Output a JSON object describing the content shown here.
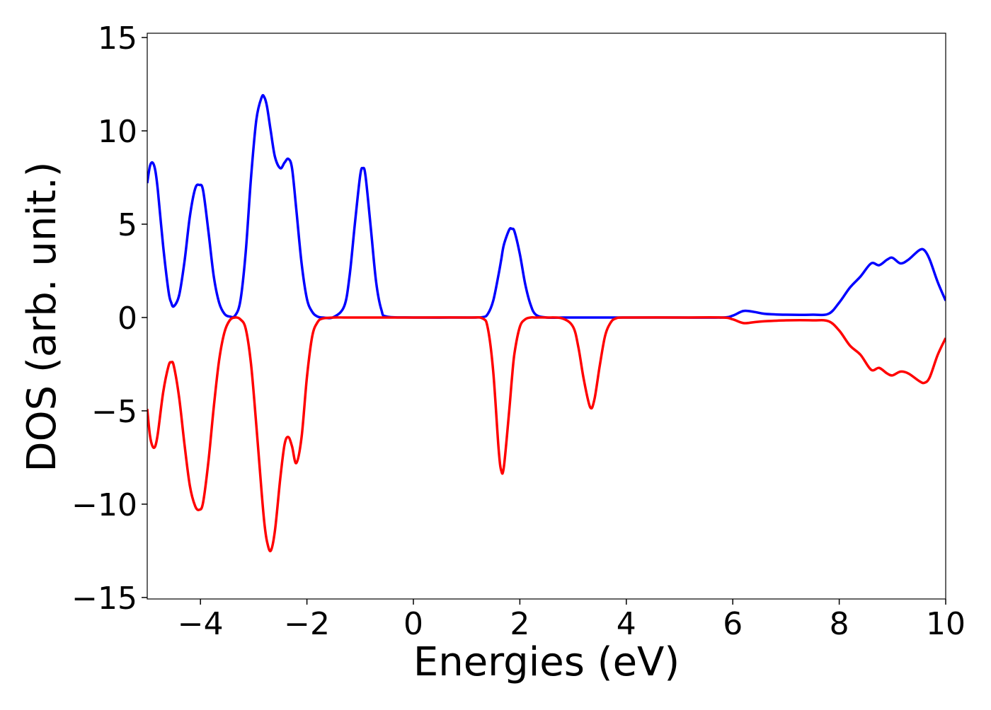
{
  "chart_data": {
    "type": "line",
    "x_label": "Energies (eV)",
    "y_label": "DOS (arb. unit.)",
    "x": [
      -5,
      -4.95,
      -4.9,
      -4.85,
      -4.8,
      -4.7,
      -4.6,
      -4.55,
      -4.5,
      -4.4,
      -4.3,
      -4.2,
      -4.1,
      -4.02,
      -3.95,
      -3.85,
      -3.75,
      -3.65,
      -3.55,
      -3.45,
      -3.35,
      -3.25,
      -3.15,
      -3.05,
      -2.95,
      -2.85,
      -2.8,
      -2.75,
      -2.68,
      -2.6,
      -2.5,
      -2.42,
      -2.35,
      -2.28,
      -2.2,
      -2.1,
      -2.0,
      -1.9,
      -1.8,
      -1.7,
      -1.5,
      -1.3,
      -1.2,
      -1.1,
      -1.0,
      -0.95,
      -0.9,
      -0.8,
      -0.7,
      -0.6,
      -0.5,
      0,
      1,
      1.3,
      1.4,
      1.5,
      1.6,
      1.65,
      1.7,
      1.8,
      1.85,
      1.9,
      2.0,
      2.1,
      2.2,
      2.3,
      2.5,
      2.8,
      3.0,
      3.1,
      3.2,
      3.32,
      3.4,
      3.5,
      3.6,
      3.7,
      3.8,
      4,
      5,
      5.8,
      6.0,
      6.2,
      6.4,
      6.6,
      7.0,
      7.5,
      7.8,
      8.0,
      8.2,
      8.4,
      8.6,
      8.75,
      8.9,
      9.0,
      9.15,
      9.3,
      9.5,
      9.6,
      9.7,
      9.85,
      10
    ],
    "series": [
      {
        "color": "#0000ff",
        "values": [
          7.2,
          8.1,
          8.3,
          7.9,
          6.8,
          3.8,
          1.4,
          0.8,
          0.6,
          1.2,
          3.0,
          5.4,
          6.9,
          7.1,
          6.8,
          4.6,
          2.2,
          0.8,
          0.2,
          0.05,
          0.1,
          0.9,
          3.5,
          7.5,
          10.6,
          11.8,
          11.8,
          11.3,
          10.0,
          8.6,
          8.0,
          8.3,
          8.5,
          8.0,
          5.8,
          2.9,
          1.0,
          0.3,
          0.05,
          0,
          0.02,
          0.6,
          2.2,
          5.0,
          7.6,
          8.0,
          7.6,
          4.8,
          1.9,
          0.4,
          0.05,
          0,
          0,
          0.02,
          0.2,
          0.9,
          2.3,
          3.1,
          3.9,
          4.7,
          4.75,
          4.6,
          3.4,
          1.8,
          0.7,
          0.15,
          0,
          0,
          0,
          0,
          0,
          0,
          0,
          0,
          0,
          0,
          0,
          0,
          0,
          0,
          0.1,
          0.35,
          0.3,
          0.2,
          0.15,
          0.15,
          0.2,
          0.8,
          1.6,
          2.2,
          2.9,
          2.8,
          3.1,
          3.2,
          2.9,
          3.1,
          3.6,
          3.6,
          3.1,
          1.9,
          0.9
        ]
      },
      {
        "color": "#ff0000",
        "values": [
          -4.9,
          -6.3,
          -6.9,
          -6.9,
          -6.2,
          -4.0,
          -2.6,
          -2.4,
          -2.6,
          -4.3,
          -6.8,
          -9.0,
          -10.1,
          -10.3,
          -9.9,
          -7.7,
          -4.8,
          -2.3,
          -0.8,
          -0.15,
          0,
          -0.1,
          -0.6,
          -2.5,
          -5.8,
          -9.4,
          -11.0,
          -12.0,
          -12.5,
          -11.4,
          -8.6,
          -6.8,
          -6.4,
          -6.9,
          -7.8,
          -6.4,
          -3.2,
          -1.0,
          -0.25,
          -0.05,
          0,
          0,
          0,
          0,
          0,
          0,
          0,
          0,
          0,
          0,
          0,
          0,
          0,
          -0.05,
          -0.6,
          -2.9,
          -7.0,
          -8.2,
          -8.0,
          -5.0,
          -3.3,
          -1.9,
          -0.5,
          -0.1,
          0,
          0,
          0,
          -0.05,
          -0.5,
          -1.6,
          -3.3,
          -4.8,
          -4.4,
          -2.6,
          -1.0,
          -0.3,
          -0.05,
          0,
          0,
          0,
          -0.1,
          -0.3,
          -0.25,
          -0.2,
          -0.15,
          -0.15,
          -0.2,
          -0.7,
          -1.5,
          -2.0,
          -2.8,
          -2.7,
          -3.0,
          -3.1,
          -2.9,
          -3.0,
          -3.4,
          -3.5,
          -3.2,
          -2.0,
          -1.1
        ]
      }
    ],
    "xlim": [
      -5,
      10
    ],
    "ylim": [
      -15.08,
      15.23
    ],
    "xticks": [
      {
        "value": -4,
        "label": "−4"
      },
      {
        "value": -2,
        "label": "−2"
      },
      0,
      2,
      4,
      6,
      8,
      10
    ],
    "yticks": [
      {
        "value": -15,
        "label": "−15"
      },
      {
        "value": -10,
        "label": "−10"
      },
      {
        "value": -5,
        "label": "−5"
      },
      0,
      5,
      10,
      15
    ],
    "grid": false
  }
}
